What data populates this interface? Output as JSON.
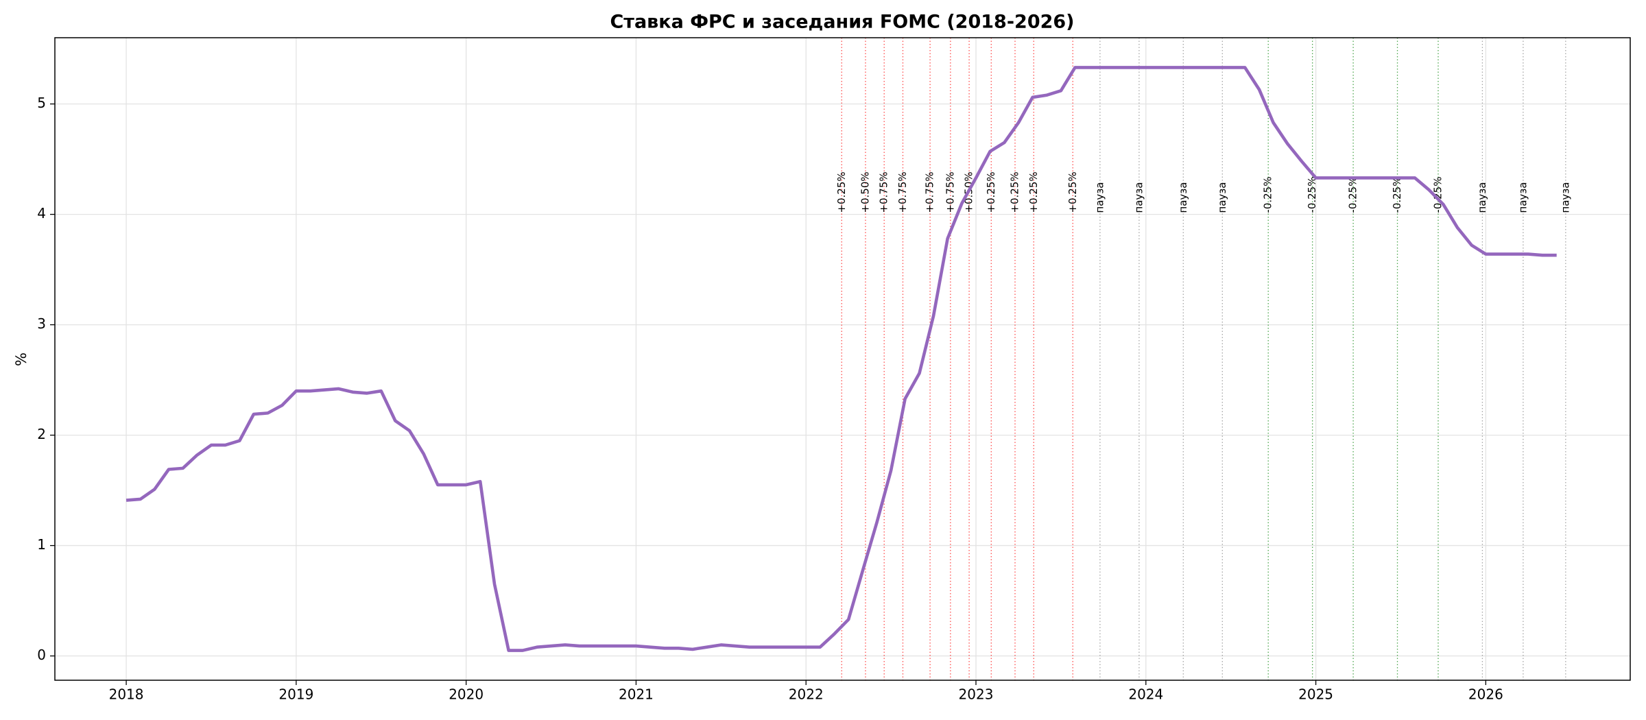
{
  "chart_data": {
    "type": "line",
    "title": "Ставка ФРС и заседания FOMC (2018-2026)",
    "y_label": "%",
    "x": [
      2018.0,
      2018.083,
      2018.167,
      2018.25,
      2018.333,
      2018.417,
      2018.5,
      2018.583,
      2018.667,
      2018.75,
      2018.833,
      2018.917,
      2019.0,
      2019.083,
      2019.167,
      2019.25,
      2019.333,
      2019.417,
      2019.5,
      2019.583,
      2019.667,
      2019.75,
      2019.833,
      2019.917,
      2020.0,
      2020.083,
      2020.167,
      2020.25,
      2020.333,
      2020.417,
      2020.5,
      2020.583,
      2020.667,
      2020.75,
      2020.833,
      2020.917,
      2021.0,
      2021.083,
      2021.167,
      2021.25,
      2021.333,
      2021.417,
      2021.5,
      2021.583,
      2021.667,
      2021.75,
      2021.833,
      2021.917,
      2022.0,
      2022.083,
      2022.167,
      2022.25,
      2022.333,
      2022.417,
      2022.5,
      2022.583,
      2022.667,
      2022.75,
      2022.833,
      2022.917,
      2023.0,
      2023.083,
      2023.167,
      2023.25,
      2023.333,
      2023.417,
      2023.5,
      2023.583,
      2023.667,
      2023.75,
      2023.833,
      2023.917,
      2024.0,
      2024.083,
      2024.167,
      2024.25,
      2024.333,
      2024.417,
      2024.5,
      2024.583,
      2024.667,
      2024.75,
      2024.833,
      2024.917,
      2025.0,
      2025.083,
      2025.167,
      2025.25,
      2025.333,
      2025.417,
      2025.5,
      2025.583,
      2025.667,
      2025.75,
      2025.833,
      2025.917,
      2026.0,
      2026.083,
      2026.167,
      2026.25,
      2026.333,
      2026.417
    ],
    "series": [
      {
        "color": "#9467bd",
        "values": [
          1.41,
          1.42,
          1.51,
          1.69,
          1.7,
          1.82,
          1.91,
          1.91,
          1.95,
          2.19,
          2.2,
          2.27,
          2.4,
          2.4,
          2.41,
          2.42,
          2.39,
          2.38,
          2.4,
          2.13,
          2.04,
          1.83,
          1.55,
          1.55,
          1.55,
          1.58,
          0.65,
          0.05,
          0.05,
          0.08,
          0.09,
          0.1,
          0.09,
          0.09,
          0.09,
          0.09,
          0.09,
          0.08,
          0.07,
          0.07,
          0.06,
          0.08,
          0.1,
          0.09,
          0.08,
          0.08,
          0.08,
          0.08,
          0.08,
          0.08,
          0.2,
          0.33,
          0.77,
          1.21,
          1.68,
          2.33,
          2.56,
          3.08,
          3.78,
          4.1,
          4.33,
          4.57,
          4.65,
          4.83,
          5.06,
          5.08,
          5.12,
          5.33,
          5.33,
          5.33,
          5.33,
          5.33,
          5.33,
          5.33,
          5.33,
          5.33,
          5.33,
          5.33,
          5.33,
          5.33,
          5.13,
          4.83,
          4.64,
          4.48,
          4.33,
          4.33,
          4.33,
          4.33,
          4.33,
          4.33,
          4.33,
          4.33,
          4.22,
          4.09,
          3.88,
          3.72,
          3.64,
          3.64,
          3.64,
          3.64,
          3.63,
          3.63
        ]
      }
    ],
    "meetings": [
      {
        "x": 2022.21,
        "label": "+0.25%",
        "color": "#ff0000"
      },
      {
        "x": 2022.35,
        "label": "+0.50%",
        "color": "#ff0000"
      },
      {
        "x": 2022.46,
        "label": "+0.75%",
        "color": "#ff0000"
      },
      {
        "x": 2022.57,
        "label": "+0.75%",
        "color": "#ff0000"
      },
      {
        "x": 2022.73,
        "label": "+0.75%",
        "color": "#ff0000"
      },
      {
        "x": 2022.85,
        "label": "+0.75%",
        "color": "#ff0000"
      },
      {
        "x": 2022.96,
        "label": "+0.50%",
        "color": "#ff0000"
      },
      {
        "x": 2023.09,
        "label": "+0.25%",
        "color": "#ff0000"
      },
      {
        "x": 2023.23,
        "label": "+0.25%",
        "color": "#ff0000"
      },
      {
        "x": 2023.34,
        "label": "+0.25%",
        "color": "#ff0000"
      },
      {
        "x": 2023.57,
        "label": "+0.25%",
        "color": "#ff0000"
      },
      {
        "x": 2023.73,
        "label": "пауза",
        "color": "#808080"
      },
      {
        "x": 2023.96,
        "label": "пауза",
        "color": "#808080"
      },
      {
        "x": 2024.22,
        "label": "пауза",
        "color": "#808080"
      },
      {
        "x": 2024.45,
        "label": "пауза",
        "color": "#808080"
      },
      {
        "x": 2024.72,
        "label": "-0.25%",
        "color": "#008000"
      },
      {
        "x": 2024.98,
        "label": "-0.25%",
        "color": "#008000"
      },
      {
        "x": 2025.22,
        "label": "-0.25%",
        "color": "#008000"
      },
      {
        "x": 2025.48,
        "label": "-0.25%",
        "color": "#008000"
      },
      {
        "x": 2025.72,
        "label": "-0.25%",
        "color": "#008000"
      },
      {
        "x": 2025.98,
        "label": "пауза",
        "color": "#808080"
      },
      {
        "x": 2026.22,
        "label": "пауза",
        "color": "#808080"
      },
      {
        "x": 2026.47,
        "label": "пауза",
        "color": "#808080"
      }
    ],
    "xlim": [
      2017.58,
      2026.85
    ],
    "xticks": [
      2018,
      2019,
      2020,
      2021,
      2022,
      2023,
      2024,
      2025,
      2026
    ],
    "ylim": [
      -0.22,
      5.6
    ],
    "yticks": [
      0,
      1,
      2,
      3,
      4,
      5
    ],
    "grid": true
  }
}
